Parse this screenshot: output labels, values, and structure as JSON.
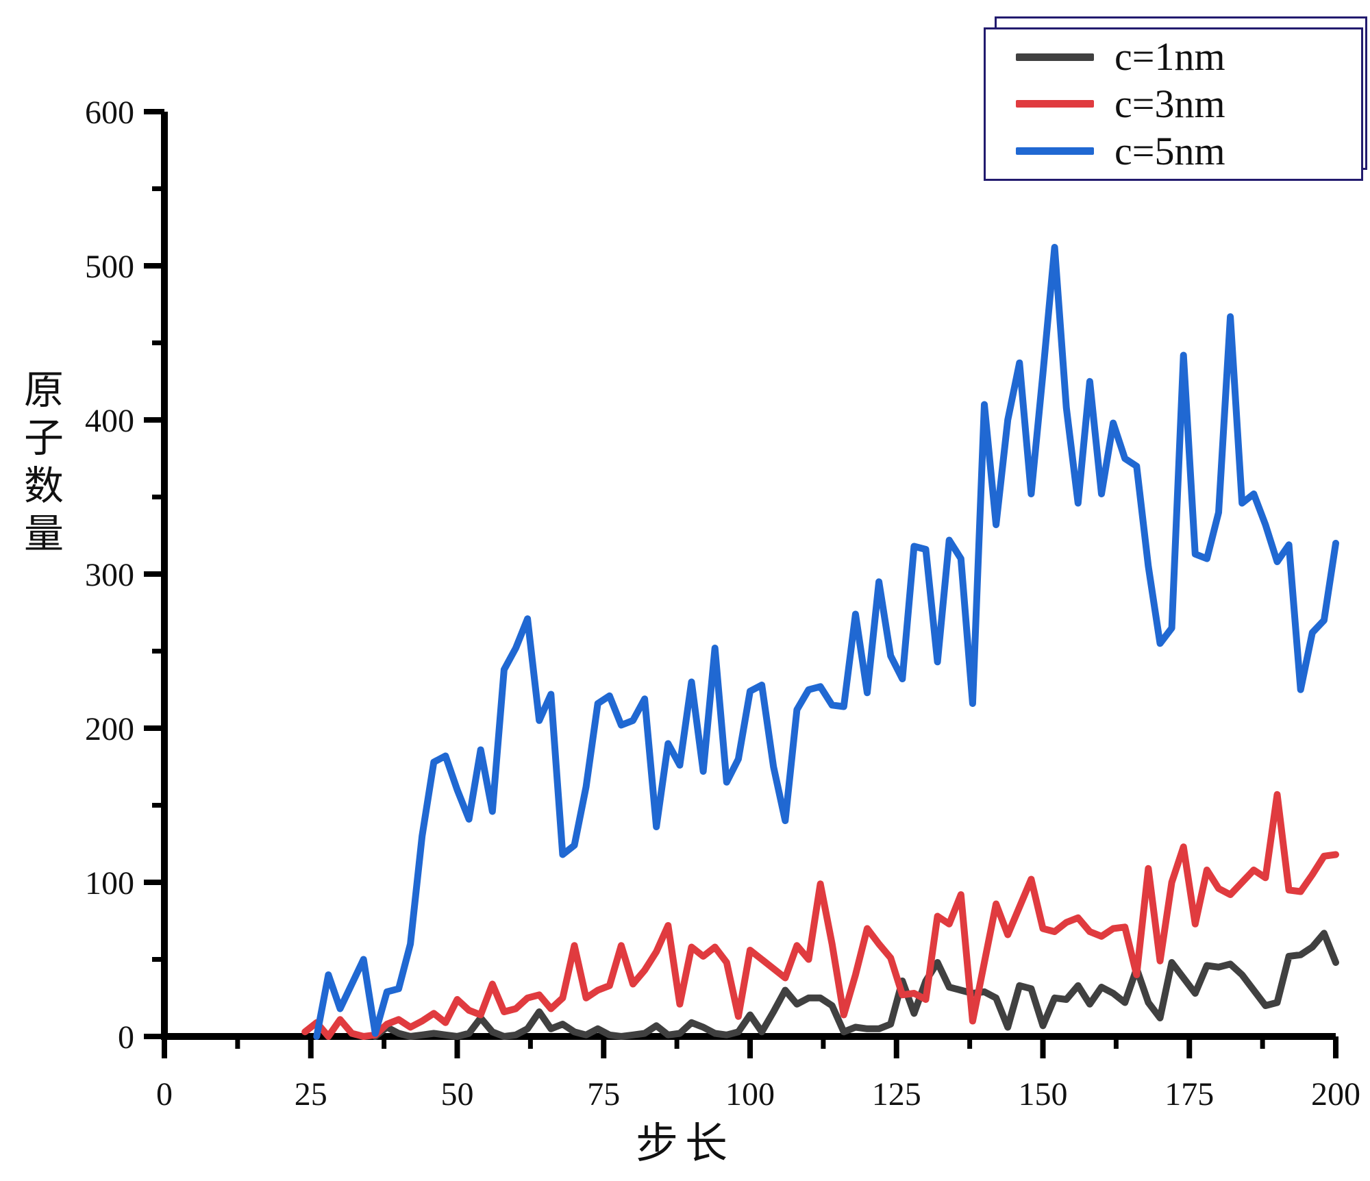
{
  "chart_data": {
    "type": "line",
    "title": "",
    "xlabel": "步长",
    "ylabel": "原子数量",
    "xlim": [
      0,
      200
    ],
    "ylim": [
      0,
      600
    ],
    "grid": false,
    "legend_position": "top-right",
    "x_major_ticks": [
      0,
      25,
      50,
      75,
      100,
      125,
      150,
      175,
      200
    ],
    "x_minor_step": 12.5,
    "y_major_ticks": [
      0,
      100,
      200,
      300,
      400,
      500,
      600
    ],
    "y_minor_step": 50,
    "axis_color": "#000000",
    "legend_border_color": "#221b6e",
    "series": [
      {
        "name": "c=1nm",
        "color": "#404040",
        "x_start": 36,
        "x_step": 2,
        "values": [
          0,
          6,
          2,
          0,
          1,
          2,
          1,
          0,
          2,
          12,
          3,
          0,
          1,
          5,
          16,
          5,
          8,
          3,
          1,
          5,
          1,
          0,
          1,
          2,
          7,
          1,
          2,
          9,
          6,
          2,
          1,
          3,
          14,
          3,
          16,
          30,
          21,
          25,
          25,
          20,
          3,
          6,
          5,
          5,
          8,
          36,
          15,
          36,
          48,
          32,
          30,
          28,
          29,
          25,
          6,
          33,
          31,
          7,
          25,
          24,
          33,
          21,
          32,
          28,
          22,
          44,
          22,
          12,
          48,
          38,
          28,
          46,
          45,
          47,
          40,
          30,
          20,
          22,
          52,
          53,
          58,
          67,
          48
        ]
      },
      {
        "name": "c=3nm",
        "color": "#e03b3f",
        "x_start": 24,
        "x_step": 2,
        "values": [
          3,
          9,
          0,
          11,
          2,
          0,
          1,
          8,
          11,
          6,
          10,
          15,
          9,
          24,
          17,
          14,
          34,
          16,
          18,
          25,
          27,
          18,
          25,
          59,
          25,
          30,
          33,
          59,
          34,
          43,
          55,
          72,
          21,
          58,
          52,
          58,
          48,
          13,
          56,
          50,
          44,
          38,
          59,
          50,
          99,
          60,
          14,
          40,
          70,
          60,
          51,
          27,
          28,
          24,
          78,
          73,
          92,
          10,
          48,
          86,
          66,
          84,
          102,
          70,
          68,
          74,
          77,
          68,
          65,
          70,
          71,
          40,
          109,
          49,
          100,
          123,
          73,
          108,
          96,
          92,
          100,
          108,
          103,
          157,
          95,
          94,
          105,
          117,
          118
        ]
      },
      {
        "name": "c=5nm",
        "color": "#2068d2",
        "x_start": 26,
        "x_step": 2,
        "values": [
          0,
          40,
          18,
          34,
          50,
          2,
          29,
          31,
          60,
          130,
          178,
          182,
          160,
          141,
          186,
          146,
          238,
          252,
          271,
          205,
          222,
          118,
          124,
          162,
          216,
          221,
          202,
          205,
          219,
          136,
          190,
          176,
          230,
          172,
          252,
          165,
          180,
          224,
          228,
          175,
          140,
          212,
          225,
          227,
          215,
          214,
          274,
          223,
          295,
          247,
          232,
          318,
          316,
          243,
          322,
          310,
          216,
          410,
          332,
          400,
          437,
          352,
          430,
          512,
          408,
          346,
          425,
          352,
          398,
          375,
          370,
          305,
          255,
          265,
          442,
          313,
          310,
          340,
          467,
          346,
          352,
          332,
          308,
          319,
          225,
          262,
          270,
          320
        ]
      }
    ]
  }
}
